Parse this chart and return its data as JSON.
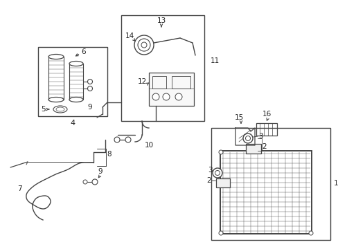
{
  "bg_color": "#ffffff",
  "line_color": "#444444",
  "text_color": "#222222",
  "fs": 7.5,
  "fig_width": 4.89,
  "fig_height": 3.6,
  "dpi": 100
}
